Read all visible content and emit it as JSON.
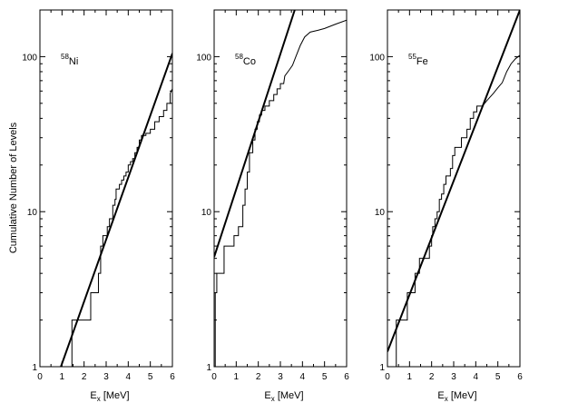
{
  "shared_ylabel": "Cumulative Number of Levels",
  "chart_data": [
    {
      "type": "line",
      "title": "",
      "label": {
        "mass": "58",
        "symbol": "Ni"
      },
      "xlabel": {
        "main": "E",
        "sub": "x",
        "unit": "[MeV]"
      },
      "ylabel": "Cumulative Number of Levels",
      "xlim": [
        0,
        6
      ],
      "ylim": [
        1,
        200
      ],
      "yscale": "log",
      "x_ticks": [
        0,
        1,
        2,
        3,
        4,
        5,
        6
      ],
      "y_ticks": [
        1,
        10,
        100
      ],
      "grid": false,
      "series": [
        {
          "kind": "step",
          "points": [
            [
              1.45,
              1
            ],
            [
              1.45,
              2
            ],
            [
              2.3,
              2
            ],
            [
              2.3,
              3
            ],
            [
              2.65,
              3
            ],
            [
              2.65,
              4
            ],
            [
              2.75,
              4
            ],
            [
              2.75,
              6
            ],
            [
              2.85,
              6
            ],
            [
              2.85,
              7
            ],
            [
              3.05,
              7
            ],
            [
              3.05,
              8
            ],
            [
              3.15,
              8
            ],
            [
              3.15,
              9
            ],
            [
              3.3,
              9
            ],
            [
              3.3,
              11
            ],
            [
              3.4,
              11
            ],
            [
              3.4,
              12
            ],
            [
              3.45,
              12
            ],
            [
              3.45,
              14
            ],
            [
              3.6,
              14
            ],
            [
              3.6,
              15
            ],
            [
              3.7,
              15
            ],
            [
              3.7,
              16
            ],
            [
              3.8,
              16
            ],
            [
              3.8,
              17
            ],
            [
              3.9,
              17
            ],
            [
              3.9,
              18
            ],
            [
              4.0,
              18
            ],
            [
              4.0,
              20
            ],
            [
              4.1,
              20
            ],
            [
              4.1,
              21
            ],
            [
              4.2,
              21
            ],
            [
              4.2,
              22
            ],
            [
              4.3,
              22
            ],
            [
              4.3,
              24
            ],
            [
              4.4,
              24
            ],
            [
              4.4,
              26
            ],
            [
              4.5,
              26
            ],
            [
              4.5,
              29
            ],
            [
              4.6,
              29
            ],
            [
              4.6,
              31
            ],
            [
              4.8,
              31
            ],
            [
              4.8,
              32
            ],
            [
              5.0,
              32
            ],
            [
              5.0,
              34
            ],
            [
              5.2,
              34
            ],
            [
              5.2,
              38
            ],
            [
              5.4,
              38
            ],
            [
              5.4,
              41
            ],
            [
              5.6,
              41
            ],
            [
              5.6,
              45
            ],
            [
              5.75,
              45
            ],
            [
              5.75,
              50
            ],
            [
              5.9,
              50
            ],
            [
              5.9,
              58
            ],
            [
              6.0,
              62
            ]
          ]
        },
        {
          "kind": "fit",
          "points": [
            [
              0.95,
              1
            ],
            [
              6.0,
              105
            ]
          ]
        }
      ]
    },
    {
      "type": "line",
      "title": "",
      "label": {
        "mass": "58",
        "symbol": "Co"
      },
      "xlabel": {
        "main": "E",
        "sub": "x",
        "unit": "[MeV]"
      },
      "ylabel": "",
      "xlim": [
        0,
        6
      ],
      "ylim": [
        1,
        200
      ],
      "yscale": "log",
      "x_ticks": [
        0,
        1,
        2,
        3,
        4,
        5,
        6
      ],
      "y_ticks": [
        1,
        10,
        100
      ],
      "grid": false,
      "series": [
        {
          "kind": "step",
          "points": [
            [
              0.0,
              1
            ],
            [
              0.05,
              1
            ],
            [
              0.05,
              3
            ],
            [
              0.12,
              3
            ],
            [
              0.12,
              4
            ],
            [
              0.45,
              4
            ],
            [
              0.45,
              6
            ],
            [
              0.9,
              6
            ],
            [
              0.9,
              7
            ],
            [
              1.1,
              7
            ],
            [
              1.1,
              8
            ],
            [
              1.3,
              8
            ],
            [
              1.3,
              11
            ],
            [
              1.4,
              11
            ],
            [
              1.4,
              14
            ],
            [
              1.5,
              14
            ],
            [
              1.5,
              18
            ],
            [
              1.6,
              18
            ],
            [
              1.6,
              24
            ],
            [
              1.75,
              24
            ],
            [
              1.75,
              29
            ],
            [
              1.85,
              29
            ],
            [
              1.85,
              34
            ],
            [
              1.95,
              34
            ],
            [
              1.95,
              38
            ],
            [
              2.05,
              38
            ],
            [
              2.05,
              42
            ],
            [
              2.15,
              42
            ],
            [
              2.15,
              45
            ],
            [
              2.3,
              45
            ],
            [
              2.3,
              48
            ],
            [
              2.5,
              48
            ],
            [
              2.5,
              52
            ],
            [
              2.7,
              52
            ],
            [
              2.7,
              57
            ],
            [
              2.85,
              57
            ],
            [
              2.85,
              62
            ],
            [
              3.0,
              62
            ],
            [
              3.0,
              67
            ],
            [
              3.15,
              67
            ],
            [
              3.2,
              75
            ],
            [
              3.4,
              82
            ],
            [
              3.55,
              88
            ],
            [
              3.7,
              100
            ],
            [
              3.9,
              118
            ],
            [
              4.1,
              134
            ],
            [
              4.35,
              144
            ],
            [
              4.7,
              148
            ],
            [
              5.0,
              152
            ],
            [
              5.5,
              162
            ],
            [
              6.0,
              172
            ]
          ]
        },
        {
          "kind": "fit",
          "points": [
            [
              0.0,
              5.1
            ],
            [
              3.65,
              200
            ]
          ]
        }
      ]
    },
    {
      "type": "line",
      "title": "",
      "label": {
        "mass": "55",
        "symbol": "Fe"
      },
      "xlabel": {
        "main": "E",
        "sub": "x",
        "unit": "[MeV]"
      },
      "ylabel": "",
      "xlim": [
        0,
        6
      ],
      "ylim": [
        1,
        200
      ],
      "yscale": "log",
      "x_ticks": [
        0,
        1,
        2,
        3,
        4,
        5,
        6
      ],
      "y_ticks": [
        1,
        10,
        100
      ],
      "grid": false,
      "series": [
        {
          "kind": "step",
          "points": [
            [
              0.4,
              1
            ],
            [
              0.4,
              2
            ],
            [
              0.9,
              2
            ],
            [
              0.9,
              3
            ],
            [
              1.25,
              3
            ],
            [
              1.25,
              4
            ],
            [
              1.45,
              4
            ],
            [
              1.45,
              5
            ],
            [
              1.9,
              5
            ],
            [
              1.9,
              6
            ],
            [
              2.0,
              6
            ],
            [
              2.0,
              7
            ],
            [
              2.05,
              7
            ],
            [
              2.05,
              8
            ],
            [
              2.15,
              8
            ],
            [
              2.15,
              9
            ],
            [
              2.25,
              9
            ],
            [
              2.25,
              10
            ],
            [
              2.35,
              10
            ],
            [
              2.35,
              12
            ],
            [
              2.45,
              12
            ],
            [
              2.45,
              13
            ],
            [
              2.55,
              13
            ],
            [
              2.55,
              15
            ],
            [
              2.65,
              15
            ],
            [
              2.65,
              17
            ],
            [
              2.85,
              17
            ],
            [
              2.85,
              19
            ],
            [
              2.95,
              19
            ],
            [
              2.95,
              23
            ],
            [
              3.05,
              23
            ],
            [
              3.05,
              26
            ],
            [
              3.35,
              26
            ],
            [
              3.35,
              30
            ],
            [
              3.6,
              30
            ],
            [
              3.6,
              34
            ],
            [
              3.75,
              34
            ],
            [
              3.75,
              40
            ],
            [
              3.9,
              40
            ],
            [
              3.9,
              44
            ],
            [
              4.05,
              44
            ],
            [
              4.05,
              48
            ],
            [
              4.3,
              48
            ],
            [
              4.5,
              52
            ],
            [
              4.8,
              58
            ],
            [
              5.0,
              63
            ],
            [
              5.2,
              68
            ],
            [
              5.4,
              80
            ],
            [
              5.6,
              90
            ],
            [
              5.8,
              97
            ],
            [
              6.0,
              102
            ]
          ]
        },
        {
          "kind": "fit",
          "points": [
            [
              0.0,
              1.25
            ],
            [
              6.0,
              200
            ]
          ]
        }
      ]
    }
  ]
}
